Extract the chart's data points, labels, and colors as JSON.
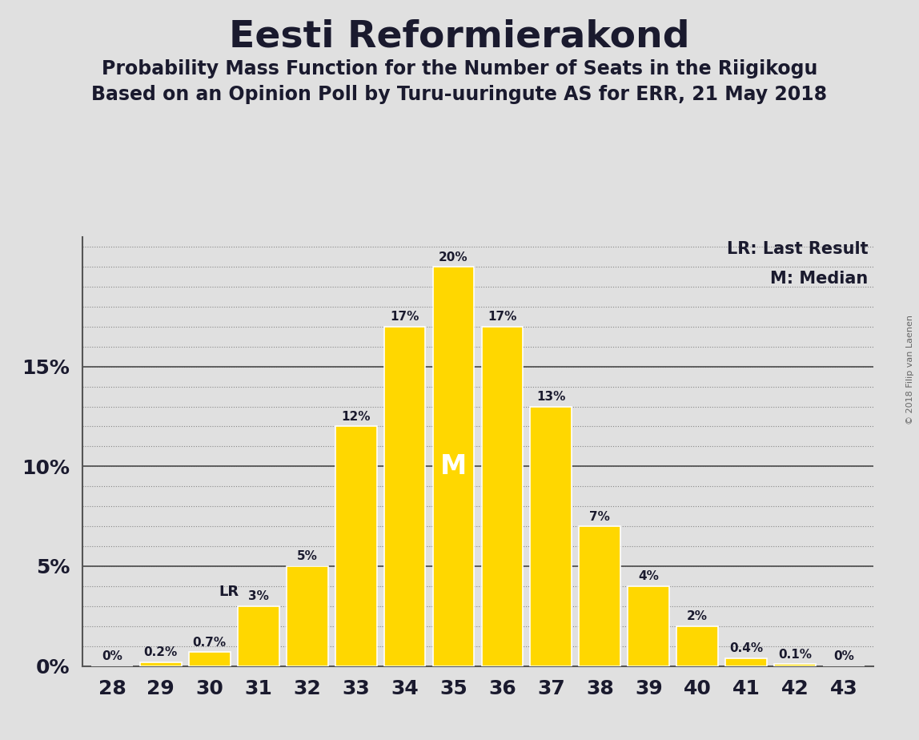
{
  "title": "Eesti Reformierakond",
  "subtitle1": "Probability Mass Function for the Number of Seats in the Riigikogu",
  "subtitle2": "Based on an Opinion Poll by Turu-uuringute AS for ERR, 21 May 2018",
  "copyright": "© 2018 Filip van Laenen",
  "seats": [
    28,
    29,
    30,
    31,
    32,
    33,
    34,
    35,
    36,
    37,
    38,
    39,
    40,
    41,
    42,
    43
  ],
  "probabilities": [
    0.0,
    0.2,
    0.7,
    3.0,
    5.0,
    12.0,
    17.0,
    20.0,
    17.0,
    13.0,
    7.0,
    4.0,
    2.0,
    0.4,
    0.1,
    0.0
  ],
  "bar_color": "#FFD700",
  "background_color": "#E0E0E0",
  "title_color": "#1a1a2e",
  "label_color": "#1a1a2e",
  "median_seat": 35,
  "last_result_seat": 31,
  "legend_lr": "LR: Last Result",
  "legend_m": "M: Median",
  "yticks_major": [
    0,
    5,
    10,
    15
  ],
  "yticks_minor_all": [
    0,
    1,
    2,
    3,
    4,
    5,
    6,
    7,
    8,
    9,
    10,
    11,
    12,
    13,
    14,
    15,
    16,
    17,
    18,
    19,
    20,
    21
  ],
  "ylim": [
    0,
    21.5
  ],
  "xlim": [
    27.4,
    43.6
  ]
}
